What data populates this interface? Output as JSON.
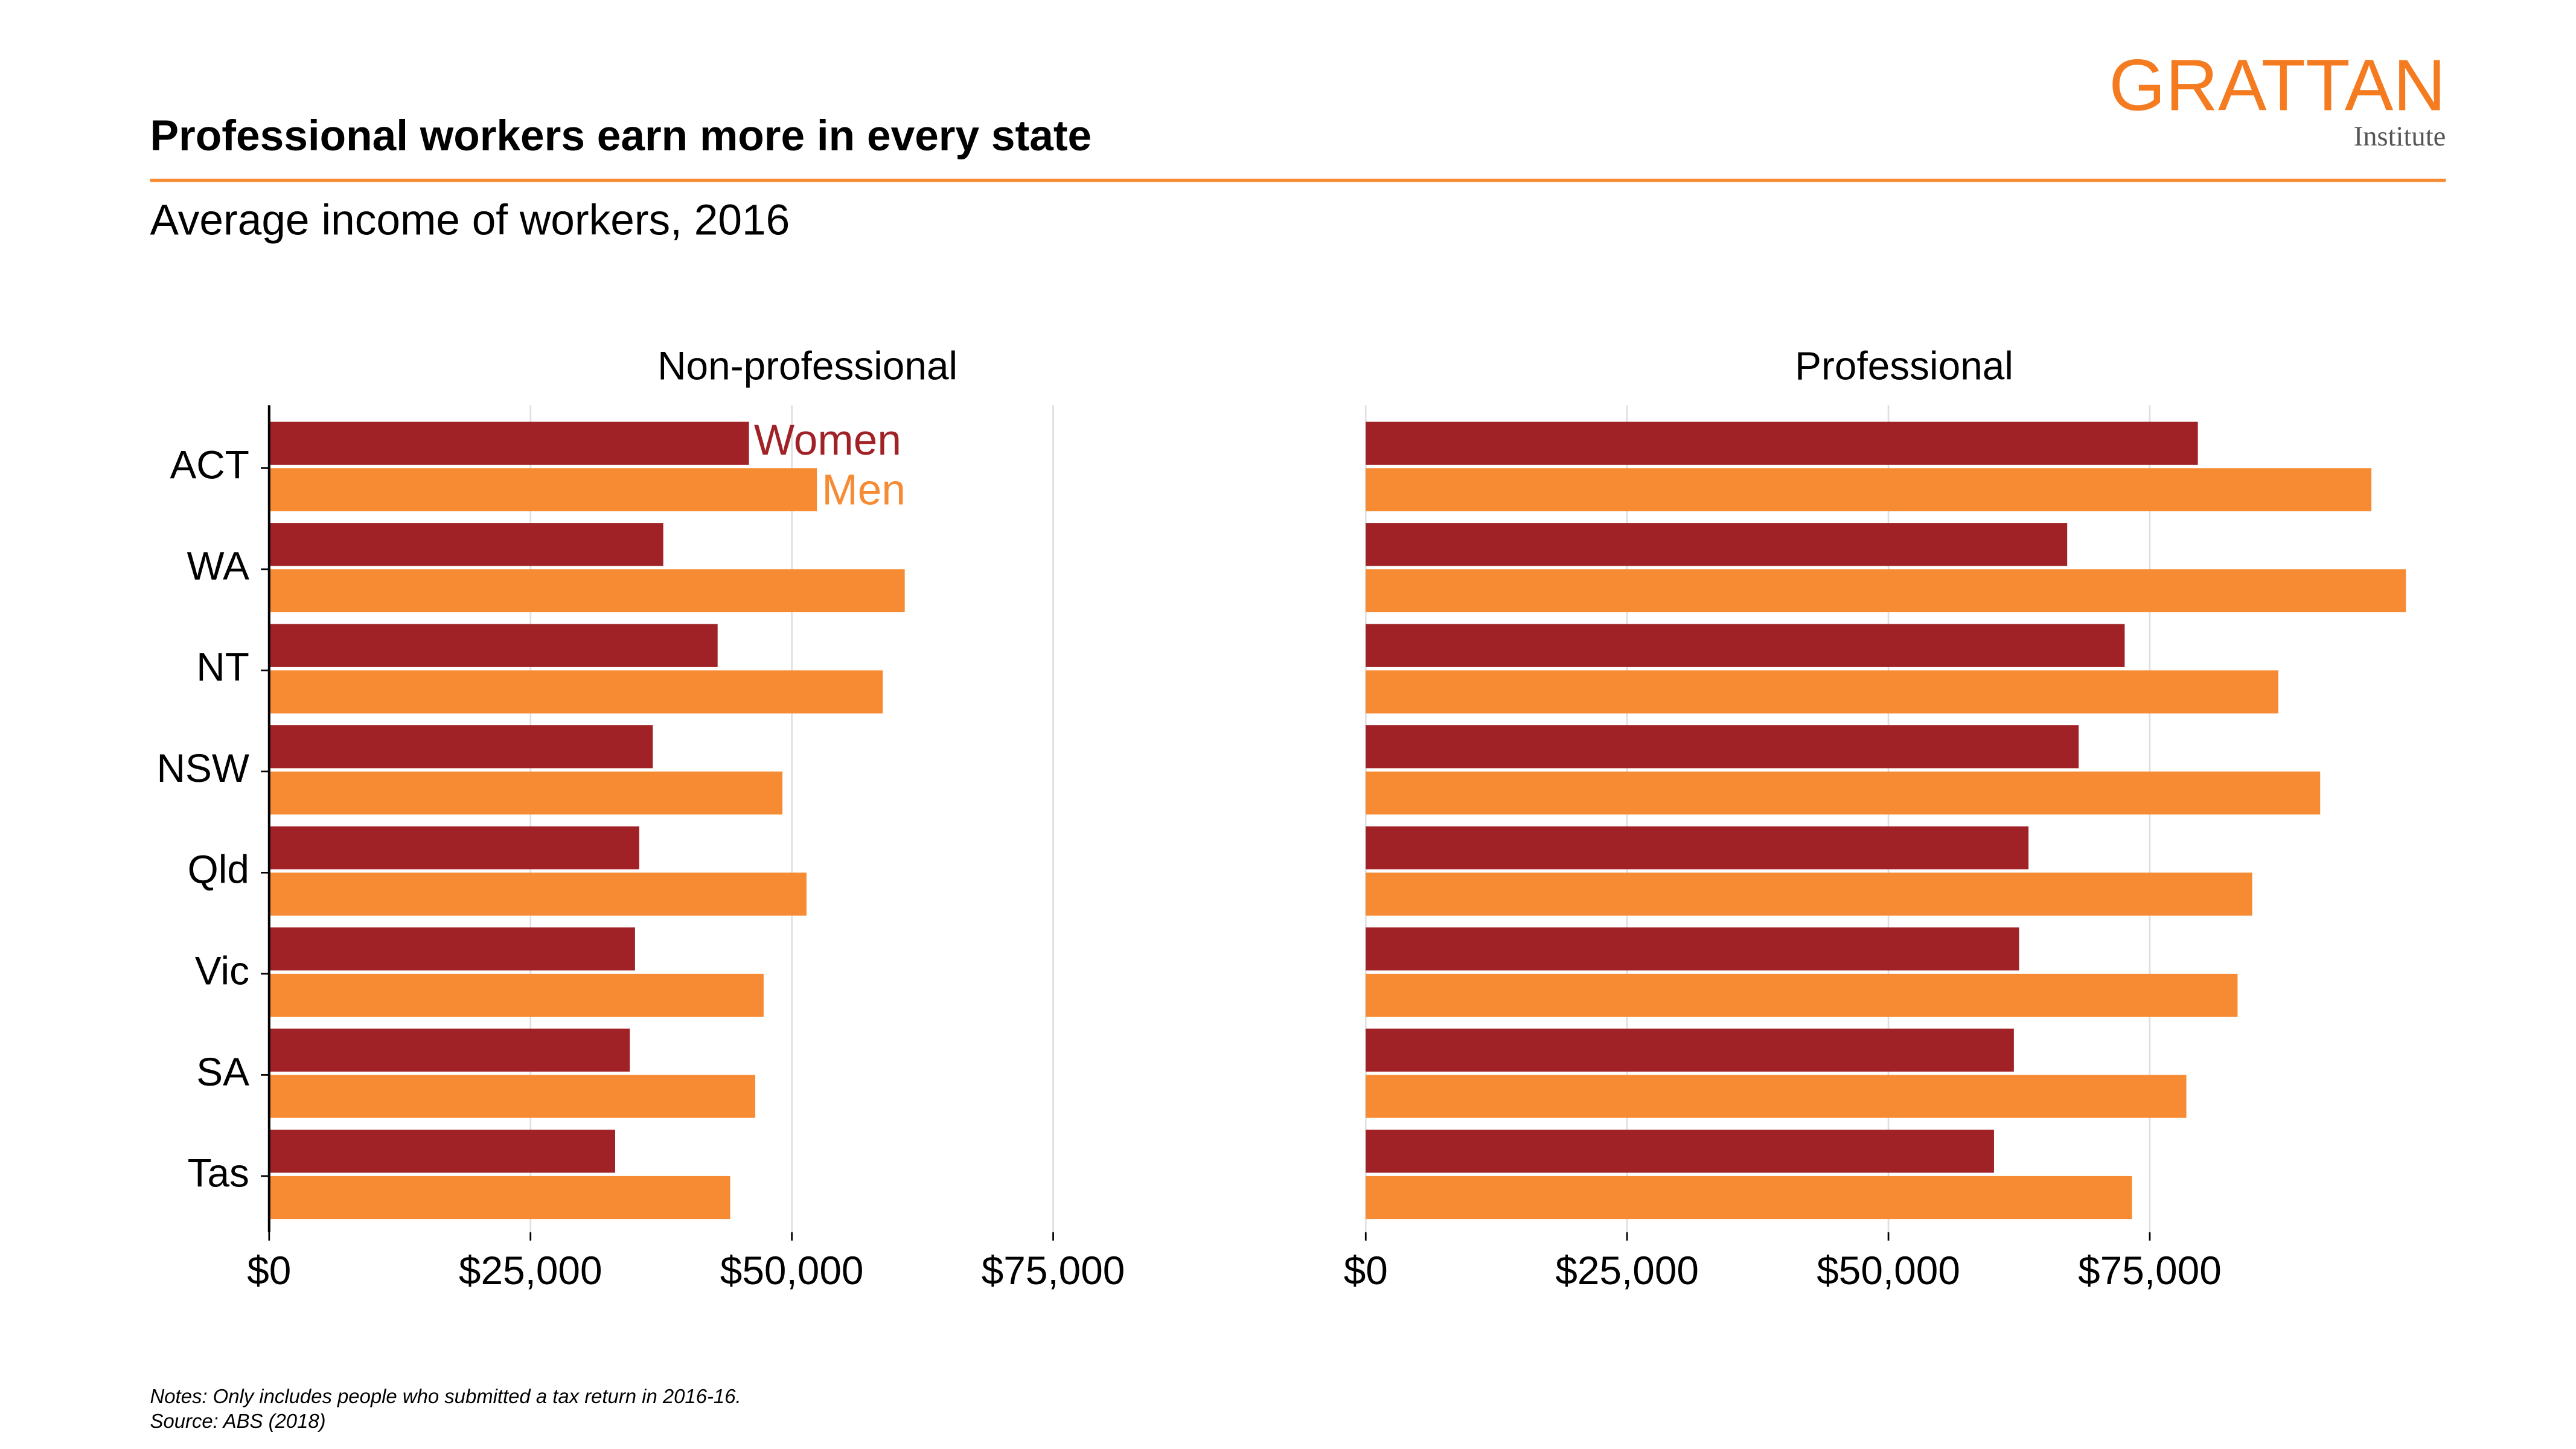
{
  "header": {
    "title": "Professional workers earn more in every state",
    "subtitle": "Average income of workers, 2016",
    "logo": "GRATTAN",
    "logo_sub": "Institute"
  },
  "chart_data": [
    {
      "type": "bar",
      "orientation": "horizontal",
      "title": "Non-professional",
      "categories": [
        "ACT",
        "WA",
        "NT",
        "NSW",
        "Qld",
        "Vic",
        "SA",
        "Tas"
      ],
      "series": [
        {
          "name": "Women",
          "color": "#a02226",
          "values": [
            45900,
            37700,
            42900,
            36700,
            35400,
            35000,
            34500,
            33100
          ]
        },
        {
          "name": "Men",
          "color": "#f68b33",
          "values": [
            52400,
            60800,
            58700,
            49100,
            51400,
            47300,
            46500,
            44100
          ]
        }
      ],
      "xlim": [
        0,
        103000
      ],
      "xticks": [
        {
          "value": 0,
          "label": "$0"
        },
        {
          "value": 25000,
          "label": "$25,000"
        },
        {
          "value": 50000,
          "label": "$50,000"
        },
        {
          "value": 75000,
          "label": "$75,000"
        }
      ],
      "grid": true
    },
    {
      "type": "bar",
      "orientation": "horizontal",
      "title": "Professional",
      "series": [
        {
          "color": "#a02226",
          "values": [
            79600,
            67100,
            72600,
            68200,
            63400,
            62500,
            62000,
            60100
          ]
        },
        {
          "color": "#f68b33",
          "values": [
            96200,
            99500,
            87300,
            91300,
            84800,
            83400,
            78500,
            73300
          ]
        }
      ],
      "xlim": [
        0,
        103000
      ],
      "xticks": [
        {
          "value": 0,
          "label": "$0"
        },
        {
          "value": 25000,
          "label": "$25,000"
        },
        {
          "value": 50000,
          "label": "$50,000"
        },
        {
          "value": 75000,
          "label": "$75,000"
        }
      ],
      "grid": true
    }
  ],
  "notes": "Notes: Only includes people who submitted a tax return in 2016-16.",
  "source": "Source: ABS (2018)"
}
